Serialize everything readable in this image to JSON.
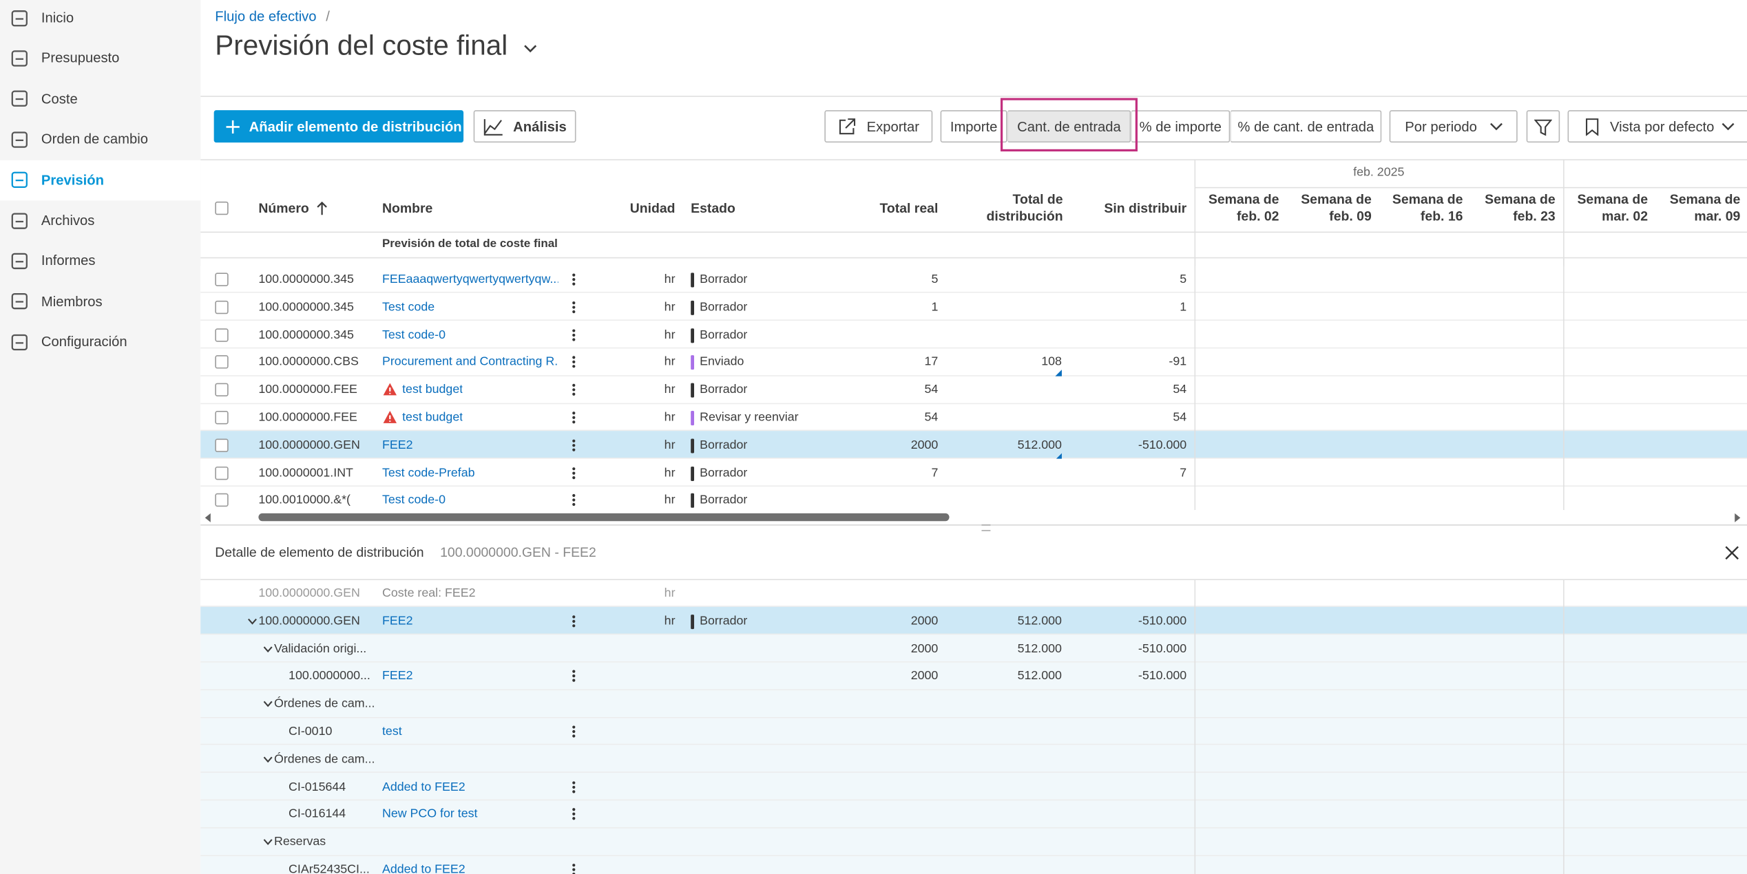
{
  "sidebar": {
    "items": [
      "Inicio",
      "Presupuesto",
      "Coste",
      "Orden de cambio",
      "Previsión",
      "Archivos",
      "Informes",
      "Miembros",
      "Configuración"
    ]
  },
  "header": {
    "breadcrumb": "Flujo de efectivo",
    "breadcrumb_separator": "/",
    "title": "Previsión del coste final"
  },
  "toolbar": {
    "add_button": "Añadir elemento de distribución",
    "analysis_button": "Análisis",
    "export_button": "Exportar",
    "view_modes": [
      "Importe",
      "Cant. de entrada",
      "% de importe",
      "% de cant. de entrada"
    ],
    "period_dropdown": "Por periodo",
    "view_dropdown": "Vista por defecto"
  },
  "table": {
    "columns": {
      "number": "Número",
      "name": "Nombre",
      "unit": "Unidad",
      "status": "Estado",
      "real": "Total real",
      "dist": "Total de distribución",
      "sin": "Sin distribuir"
    },
    "month": "feb. 2025",
    "weeks": [
      "Semana de feb. 02",
      "Semana de feb. 09",
      "Semana de feb. 16",
      "Semana de feb. 23",
      "Semana de mar. 02",
      "Semana de mar. 09"
    ],
    "summary_row": "Previsión de total de coste final",
    "rows": [
      {
        "number": "100.0000000.345",
        "name": "FEEaaaqwertyqwertyqwertyqw...",
        "unit": "hr",
        "status": "Borrador",
        "status_color": "#333333",
        "real": "5",
        "sin": "5"
      },
      {
        "number": "100.0000000.345",
        "name": "Test code",
        "unit": "hr",
        "status": "Borrador",
        "status_color": "#333333",
        "real": "1",
        "sin": "1"
      },
      {
        "number": "100.0000000.345",
        "name": "Test code-0",
        "unit": "hr",
        "status": "Borrador",
        "status_color": "#333333"
      },
      {
        "number": "100.0000000.CBS",
        "name": "Procurement and Contracting R...",
        "unit": "hr",
        "status": "Enviado",
        "status_color": "#a970e8",
        "real": "17",
        "dist": "108",
        "dist_flag": true,
        "sin": "-91"
      },
      {
        "number": "100.0000000.FEE",
        "name": "test budget",
        "warning": true,
        "unit": "hr",
        "status": "Borrador",
        "status_color": "#333333",
        "real": "54",
        "sin": "54"
      },
      {
        "number": "100.0000000.FEE",
        "name": "test budget",
        "warning": true,
        "unit": "hr",
        "status": "Revisar y reenviar",
        "status_color": "#a970e8",
        "real": "54",
        "sin": "54"
      },
      {
        "number": "100.0000000.GEN",
        "name": "FEE2",
        "unit": "hr",
        "status": "Borrador",
        "status_color": "#333333",
        "real": "2000",
        "dist": "512.000",
        "dist_flag": true,
        "sin": "-510.000",
        "selected": true
      },
      {
        "number": "100.0000001.INT",
        "name": "Test code-Prefab",
        "unit": "hr",
        "status": "Borrador",
        "status_color": "#333333",
        "real": "7",
        "sin": "7"
      },
      {
        "number": "100.0010000.&*(",
        "name": "Test code-0",
        "unit": "hr",
        "status": "Borrador",
        "status_color": "#333333"
      }
    ]
  },
  "detail": {
    "title": "Detalle de elemento de distribución",
    "subtitle": "100.0000000.GEN - FEE2",
    "rows": [
      {
        "level": 0,
        "number": "100.0000000.GEN",
        "label": "Coste real: FEE2",
        "unit": "hr",
        "muted": true
      },
      {
        "level": 0,
        "expandable": true,
        "number": "100.0000000.GEN",
        "name": "FEE2",
        "unit": "hr",
        "status": "Borrador",
        "status_color": "#333333",
        "real": "2000",
        "dist": "512.000",
        "sin": "-510.000",
        "selected": true
      },
      {
        "level": 1,
        "expandable": true,
        "number": "Validación origi...",
        "real": "2000",
        "dist": "512.000",
        "sin": "-510.000"
      },
      {
        "level": 2,
        "number": "100.0000000...",
        "name": "FEE2",
        "real": "2000",
        "dist": "512.000",
        "sin": "-510.000"
      },
      {
        "level": 1,
        "expandable": true,
        "number": "Órdenes de cam..."
      },
      {
        "level": 2,
        "number": "CI-0010",
        "name": "test"
      },
      {
        "level": 1,
        "expandable": true,
        "number": "Órdenes de cam..."
      },
      {
        "level": 2,
        "number": "CI-015644",
        "name": "Added to FEE2"
      },
      {
        "level": 2,
        "number": "CI-016144",
        "name": "New PCO for test"
      },
      {
        "level": 1,
        "expandable": true,
        "number": "Reservas"
      },
      {
        "level": 2,
        "number": "CIAr52435CI...",
        "name": "Added to FEE2"
      }
    ]
  }
}
